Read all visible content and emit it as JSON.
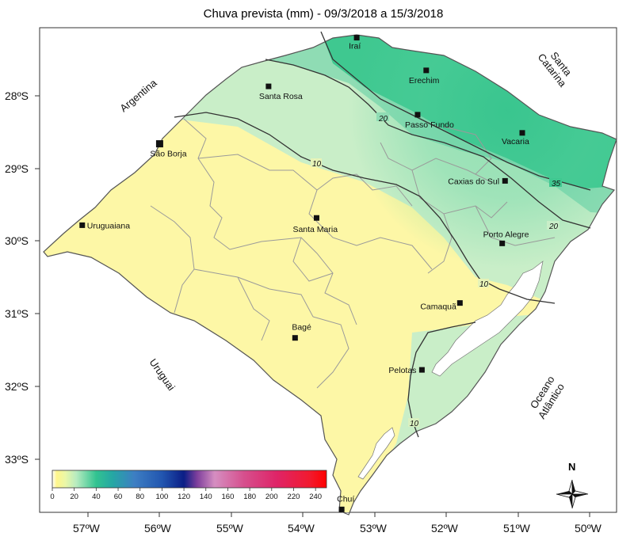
{
  "title": "Chuva prevista (mm) - 09/3/2018 a 15/3/2018",
  "lat_labels": [
    "28ºS",
    "29ºS",
    "30ºS",
    "31ºS",
    "32ºS",
    "33ºS"
  ],
  "lon_labels": [
    "57ºW",
    "56ºW",
    "55ºW",
    "54ºW",
    "53ºW",
    "52ºW",
    "51ºW",
    "50ºW"
  ],
  "cities": [
    {
      "name": "Iraí",
      "lon": -53.25,
      "lat": -27.2
    },
    {
      "name": "Erechim",
      "lon": -52.28,
      "lat": -27.65
    },
    {
      "name": "Santa Rosa",
      "lon": -54.48,
      "lat": -27.87
    },
    {
      "name": "Passo Fundo",
      "lon": -52.4,
      "lat": -28.26
    },
    {
      "name": "Vacaria",
      "lon": -50.94,
      "lat": -28.51
    },
    {
      "name": "São Borja",
      "lon": -56.0,
      "lat": -28.66
    },
    {
      "name": "Caxias do Sul",
      "lon": -51.18,
      "lat": -29.17
    },
    {
      "name": "Santa Maria",
      "lon": -53.81,
      "lat": -29.68
    },
    {
      "name": "Uruguaiana",
      "lon": -57.08,
      "lat": -29.78
    },
    {
      "name": "Porto Alegre",
      "lon": -51.22,
      "lat": -30.03
    },
    {
      "name": "Camaquã",
      "lon": -51.81,
      "lat": -30.85
    },
    {
      "name": "Bagé",
      "lon": -54.11,
      "lat": -31.33
    },
    {
      "name": "Pelotas",
      "lon": -52.34,
      "lat": -31.77
    },
    {
      "name": "Chuí",
      "lon": -53.46,
      "lat": -33.69
    }
  ],
  "regions": {
    "argentina": "Argentina",
    "santa_catarina_1": "Santa",
    "santa_catarina_2": "Catarina",
    "uruguai": "Uruguai",
    "oceano_1": "Oceano",
    "oceano_2": "Atlântico"
  },
  "isolines": [
    "35",
    "20",
    "20",
    "10",
    "10",
    "10"
  ],
  "colorbar": {
    "ticks": [
      "0",
      "20",
      "40",
      "60",
      "80",
      "100",
      "120",
      "140",
      "160",
      "180",
      "200",
      "220",
      "240"
    ],
    "range": [
      0,
      250
    ],
    "stops": [
      {
        "v": 0,
        "c": "#ffffff"
      },
      {
        "v": 4,
        "c": "#fff68a"
      },
      {
        "v": 12,
        "c": "#eaf7a8"
      },
      {
        "v": 22,
        "c": "#b6ebc0"
      },
      {
        "v": 40,
        "c": "#32c390"
      },
      {
        "v": 55,
        "c": "#25a7a4"
      },
      {
        "v": 75,
        "c": "#3d7ec3"
      },
      {
        "v": 100,
        "c": "#2256b0"
      },
      {
        "v": 120,
        "c": "#0b1e86"
      },
      {
        "v": 132,
        "c": "#7e3f9c"
      },
      {
        "v": 148,
        "c": "#d58ec1"
      },
      {
        "v": 175,
        "c": "#d64f8d"
      },
      {
        "v": 205,
        "c": "#df2467"
      },
      {
        "v": 235,
        "c": "#f21a2e"
      },
      {
        "v": 250,
        "c": "#ff0000"
      }
    ]
  },
  "north_label": "N",
  "colors": {
    "state_fill_base": "#fdf7a6",
    "high_rain": "#3cc796",
    "mid_rain": "#c6edc6",
    "water": "#ffffff"
  }
}
